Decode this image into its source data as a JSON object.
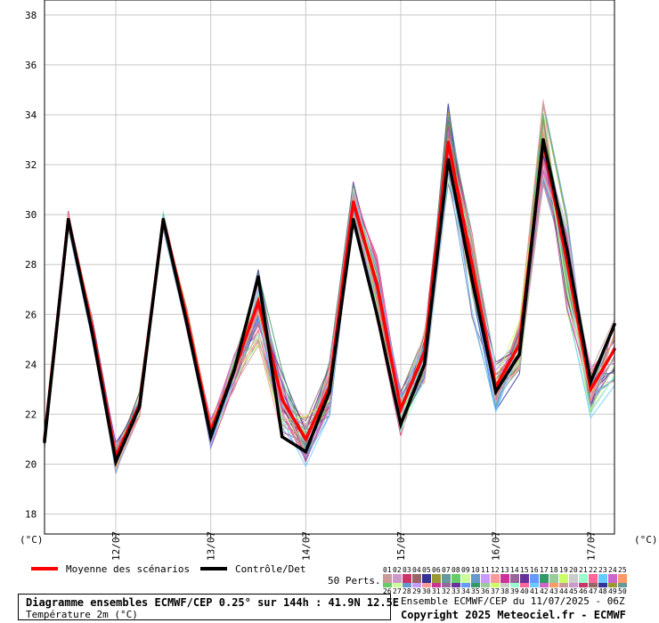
{
  "chart_data": {
    "type": "line",
    "title": "Diagramme ensembles ECMWF/CEP 0.25° sur 144h : 41.9N 12.5E",
    "subtitle": "Température 2m (°C)",
    "ylabel_left": "(°C)",
    "ylabel_right": "(°C)",
    "ylim": [
      17.2,
      38.6
    ],
    "yticks": [
      18,
      20,
      22,
      24,
      26,
      28,
      30,
      32,
      34,
      36,
      38
    ],
    "x_range": [
      0,
      144
    ],
    "date_ticks": [
      {
        "h": 18,
        "label": "12/07"
      },
      {
        "h": 42,
        "label": "13/07"
      },
      {
        "h": 66,
        "label": "14/07"
      },
      {
        "h": 90,
        "label": "15/07"
      },
      {
        "h": 114,
        "label": "16/07"
      },
      {
        "h": 138,
        "label": "17/07"
      }
    ],
    "grid": true,
    "x_hours": [
      0,
      6,
      12,
      18,
      24,
      30,
      36,
      42,
      48,
      54,
      60,
      66,
      72,
      78,
      84,
      90,
      96,
      102,
      108,
      114,
      120,
      126,
      132,
      138,
      144
    ],
    "series": [
      {
        "name": "Moyenne des scénarios",
        "color": "#ff0000",
        "values": [
          21.0,
          29.8,
          25.5,
          20.3,
          22.4,
          29.8,
          25.8,
          21.3,
          23.8,
          26.5,
          22.6,
          21.0,
          23.1,
          30.5,
          27.2,
          22.2,
          24.5,
          32.9,
          28.0,
          23.1,
          24.8,
          32.9,
          28.1,
          23.0,
          24.6
        ]
      },
      {
        "name": "Contrôle/Det",
        "color": "#000000",
        "values": [
          20.9,
          29.8,
          25.3,
          20.1,
          22.3,
          29.8,
          25.6,
          21.1,
          23.8,
          27.5,
          21.1,
          20.5,
          22.9,
          29.8,
          26.0,
          21.6,
          24.0,
          32.2,
          27.4,
          22.9,
          24.4,
          33.0,
          28.6,
          23.3,
          25.6
        ]
      }
    ],
    "members_count": 50,
    "members_label": "50 Perts.",
    "member_colors": [
      "#cc9999",
      "#cc99cc",
      "#cc3366",
      "#996666",
      "#333399",
      "#999933",
      "#669999",
      "#66cc66",
      "#ccff99",
      "#6699cc",
      "#cc99ff",
      "#ff9999",
      "#cc3399",
      "#996699",
      "#663399",
      "#6699ff",
      "#339966",
      "#99cc99",
      "#ccff66",
      "#cccccc",
      "#99ffcc",
      "#ff6699",
      "#66ccff",
      "#cc66cc",
      "#ff9966"
    ],
    "member_ids_row1": [
      "01",
      "02",
      "03",
      "04",
      "05",
      "06",
      "07",
      "08",
      "09",
      "10",
      "11",
      "12",
      "13",
      "14",
      "15",
      "16",
      "17",
      "18",
      "19",
      "20",
      "21",
      "22",
      "23",
      "24",
      "25"
    ],
    "member_ids_row2": [
      "26",
      "27",
      "28",
      "29",
      "30",
      "31",
      "32",
      "33",
      "34",
      "35",
      "36",
      "37",
      "38",
      "39",
      "40",
      "41",
      "42",
      "43",
      "44",
      "45",
      "46",
      "47",
      "48",
      "49",
      "50"
    ]
  },
  "legend": {
    "mean_label": "Moyenne des scénarios",
    "control_label": "Contrôle/Det"
  },
  "footer": {
    "title": "Diagramme ensembles ECMWF/CEP 0.25° sur 144h : 41.9N 12.5E",
    "subtitle": "Température 2m (°C)",
    "run_info": "Ensemble ECMWF/CEP du 11/07/2025 - 06Z",
    "copyright": "Copyright 2025 Meteociel.fr - ECMWF"
  }
}
